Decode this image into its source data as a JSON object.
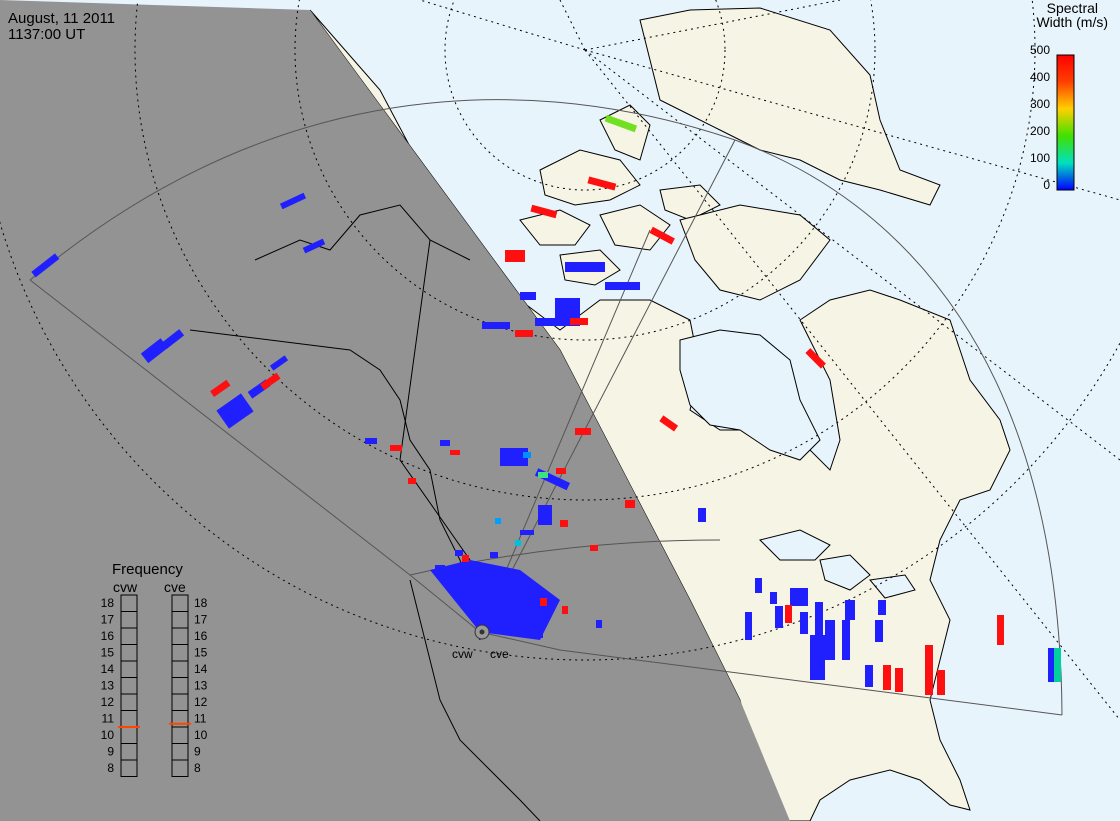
{
  "header": {
    "date": "August, 11 2011",
    "time": "1137:00 UT"
  },
  "colorbar": {
    "title_line1": "Spectral",
    "title_line2": "Width (m/s)",
    "ticks": [
      "500",
      "400",
      "300",
      "200",
      "100",
      "0"
    ],
    "gradient_colors": [
      "#ff0000",
      "#ff8000",
      "#ffe000",
      "#40e000",
      "#00e0c0",
      "#0000ff"
    ]
  },
  "frequency": {
    "title": "Frequency",
    "radar_left": "cvw",
    "radar_right": "cve",
    "scale": [
      "18",
      "17",
      "16",
      "15",
      "14",
      "13",
      "12",
      "11",
      "10",
      "9",
      "8"
    ],
    "left_value_mhz": 10.5,
    "right_value_mhz": 10.7,
    "indicator_color": "#ff4500"
  },
  "radar_labels": {
    "west": "cvw",
    "east": "cve"
  },
  "map_colors": {
    "ocean_day": "#e8f4fc",
    "land_day": "#f6f4e4",
    "night": "#939393",
    "low_width": "#2020ff",
    "high_width": "#ff1010",
    "mid_width": "#70e020"
  }
}
